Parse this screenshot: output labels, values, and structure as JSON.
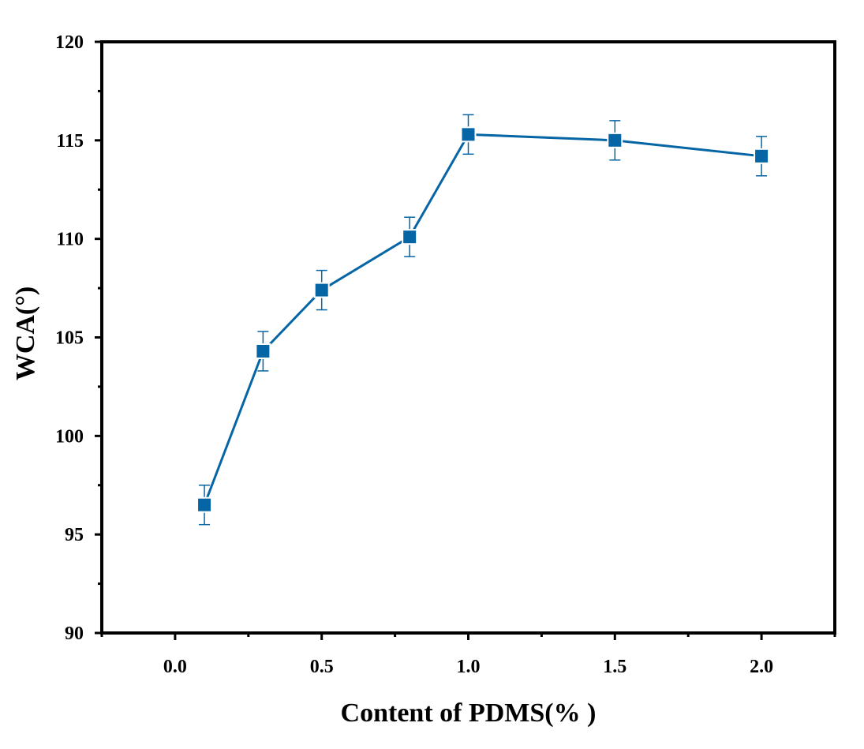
{
  "chart_data": {
    "type": "line",
    "title": "",
    "xlabel": "Content of PDMS(% )",
    "ylabel": "WCA(°)",
    "xlim": [
      -0.25,
      2.25
    ],
    "ylim": [
      90,
      120
    ],
    "x_ticks": [
      0.0,
      0.5,
      1.0,
      1.5,
      2.0
    ],
    "x_tick_labels": [
      "0.0",
      "0.5",
      "1.0",
      "1.5",
      "2.0"
    ],
    "y_ticks": [
      90,
      95,
      100,
      105,
      110,
      115,
      120
    ],
    "y_tick_labels": [
      "90",
      "95",
      "100",
      "105",
      "110",
      "115",
      "120"
    ],
    "grid": false,
    "legend": "none",
    "marker": "square",
    "color": "#0565a5",
    "series": [
      {
        "x": [
          0.1,
          0.3,
          0.5,
          0.8,
          1.0,
          1.5,
          2.0
        ],
        "y": [
          96.5,
          104.3,
          107.4,
          110.1,
          115.3,
          115.0,
          114.2
        ],
        "error": [
          1.0,
          1.0,
          1.0,
          1.0,
          1.0,
          1.0,
          1.0
        ]
      }
    ]
  }
}
